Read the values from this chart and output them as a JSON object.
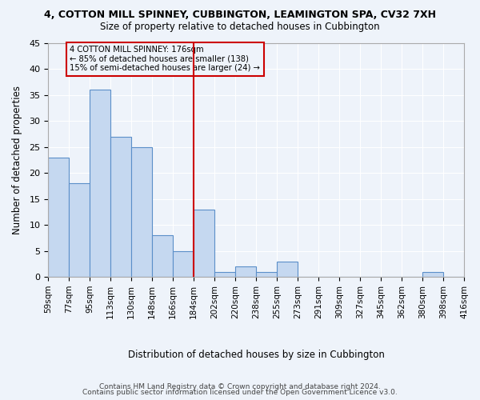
{
  "title": "4, COTTON MILL SPINNEY, CUBBINGTON, LEAMINGTON SPA, CV32 7XH",
  "subtitle": "Size of property relative to detached houses in Cubbington",
  "xlabel": "Distribution of detached houses by size in Cubbington",
  "ylabel": "Number of detached properties",
  "bar_values": [
    23,
    18,
    36,
    27,
    25,
    8,
    5,
    13,
    1,
    2,
    1,
    3,
    0,
    0,
    0,
    0,
    0,
    0,
    1,
    0
  ],
  "categories": [
    "59sqm",
    "77sqm",
    "95sqm",
    "113sqm",
    "130sqm",
    "148sqm",
    "166sqm",
    "184sqm",
    "202sqm",
    "220sqm",
    "238sqm",
    "255sqm",
    "273sqm",
    "291sqm",
    "309sqm",
    "327sqm",
    "345sqm",
    "362sqm",
    "380sqm",
    "398sqm"
  ],
  "last_tick": "416sqm",
  "bar_color": "#c5d8f0",
  "bar_edge_color": "#5b8fc9",
  "vline_x": 6.5,
  "vline_color": "#cc0000",
  "annotation_text": "4 COTTON MILL SPINNEY: 176sqm\n← 85% of detached houses are smaller (138)\n15% of semi-detached houses are larger (24) →",
  "annotation_box_color": "#cc0000",
  "ylim": [
    0,
    45
  ],
  "yticks": [
    0,
    5,
    10,
    15,
    20,
    25,
    30,
    35,
    40,
    45
  ],
  "footer_line1": "Contains HM Land Registry data © Crown copyright and database right 2024.",
  "footer_line2": "Contains public sector information licensed under the Open Government Licence v3.0.",
  "bg_color": "#eef3fa",
  "grid_color": "#ffffff"
}
